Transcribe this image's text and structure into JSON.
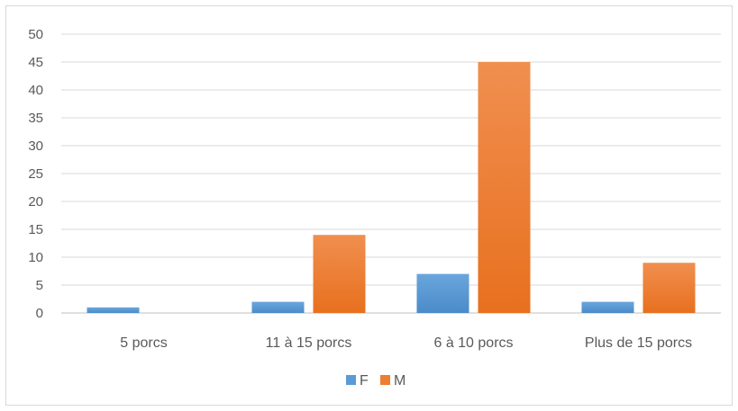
{
  "chart_data": {
    "type": "bar",
    "title": "",
    "xlabel": "",
    "ylabel": "",
    "categories": [
      "5 porcs",
      "11 à 15 porcs",
      "6 à 10 porcs",
      "Plus de 15 porcs"
    ],
    "series": [
      {
        "name": "F",
        "values": [
          1,
          2,
          7,
          2
        ],
        "color": "#5b9bd5"
      },
      {
        "name": "M",
        "values": [
          0,
          14,
          45,
          9
        ],
        "color": "#ed7d31"
      }
    ],
    "ylim": [
      0,
      50
    ],
    "yticks": [
      0,
      5,
      10,
      15,
      20,
      25,
      30,
      35,
      40,
      45,
      50
    ],
    "grid": true,
    "legend_position": "bottom"
  }
}
